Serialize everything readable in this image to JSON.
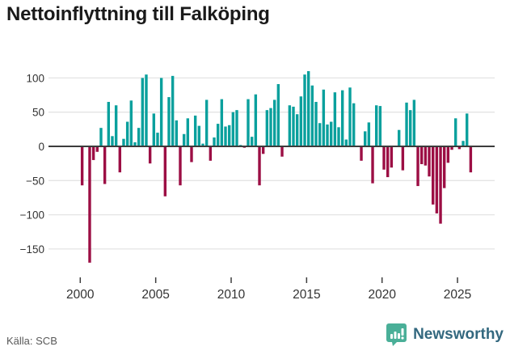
{
  "title": "Nettoinflyttning till Falköping",
  "source": "Källa: SCB",
  "logo": {
    "text": "Newsworthy",
    "icon": "bar-chart-bubble"
  },
  "colors": {
    "positive": "#0aa09d",
    "negative": "#9c0e44",
    "grid": "#e4e4e4",
    "zero_line": "#3c3c3c",
    "axis_text": "#333333",
    "title_text": "#1a1a1a",
    "source_text": "#595959",
    "logo_icon": "#4aaf98",
    "logo_text": "#33687f"
  },
  "chart_data": {
    "type": "bar",
    "title": "Nettoinflyttning till Falköping",
    "x_start": "2000 Q1",
    "frequency": "quarterly",
    "x_tick_years": [
      2000,
      2005,
      2010,
      2015,
      2020,
      2025
    ],
    "x_tick_labels": [
      "2000",
      "2005",
      "2010",
      "2015",
      "2020",
      "2025"
    ],
    "y_ticks": [
      100,
      50,
      0,
      -50,
      -100,
      -150
    ],
    "y_tick_labels": [
      "100",
      "50",
      "0",
      "−50",
      "−100",
      "−150"
    ],
    "ylim": [
      -185,
      125
    ],
    "grid": "horizontal",
    "legend": "none",
    "values": [
      -57,
      0,
      -170,
      -20,
      -8,
      27,
      -55,
      65,
      15,
      60,
      -38,
      11,
      36,
      67,
      6,
      27,
      100,
      105,
      -25,
      48,
      20,
      100,
      -73,
      72,
      103,
      38,
      -57,
      18,
      41,
      -23,
      45,
      30,
      4,
      68,
      -21,
      13,
      33,
      69,
      29,
      31,
      50,
      53,
      2,
      -2,
      69,
      14,
      76,
      -57,
      -11,
      53,
      56,
      68,
      91,
      -15,
      0,
      60,
      58,
      47,
      73,
      105,
      110,
      89,
      65,
      34,
      83,
      32,
      36,
      79,
      28,
      82,
      10,
      86,
      63,
      0,
      -21,
      22,
      35,
      -54,
      60,
      59,
      -34,
      -45,
      -31,
      0,
      24,
      -35,
      64,
      53,
      68,
      -58,
      -26,
      -28,
      -44,
      -85,
      -98,
      -113,
      -61,
      -24,
      -5,
      41,
      -4,
      8,
      48,
      -38
    ]
  }
}
